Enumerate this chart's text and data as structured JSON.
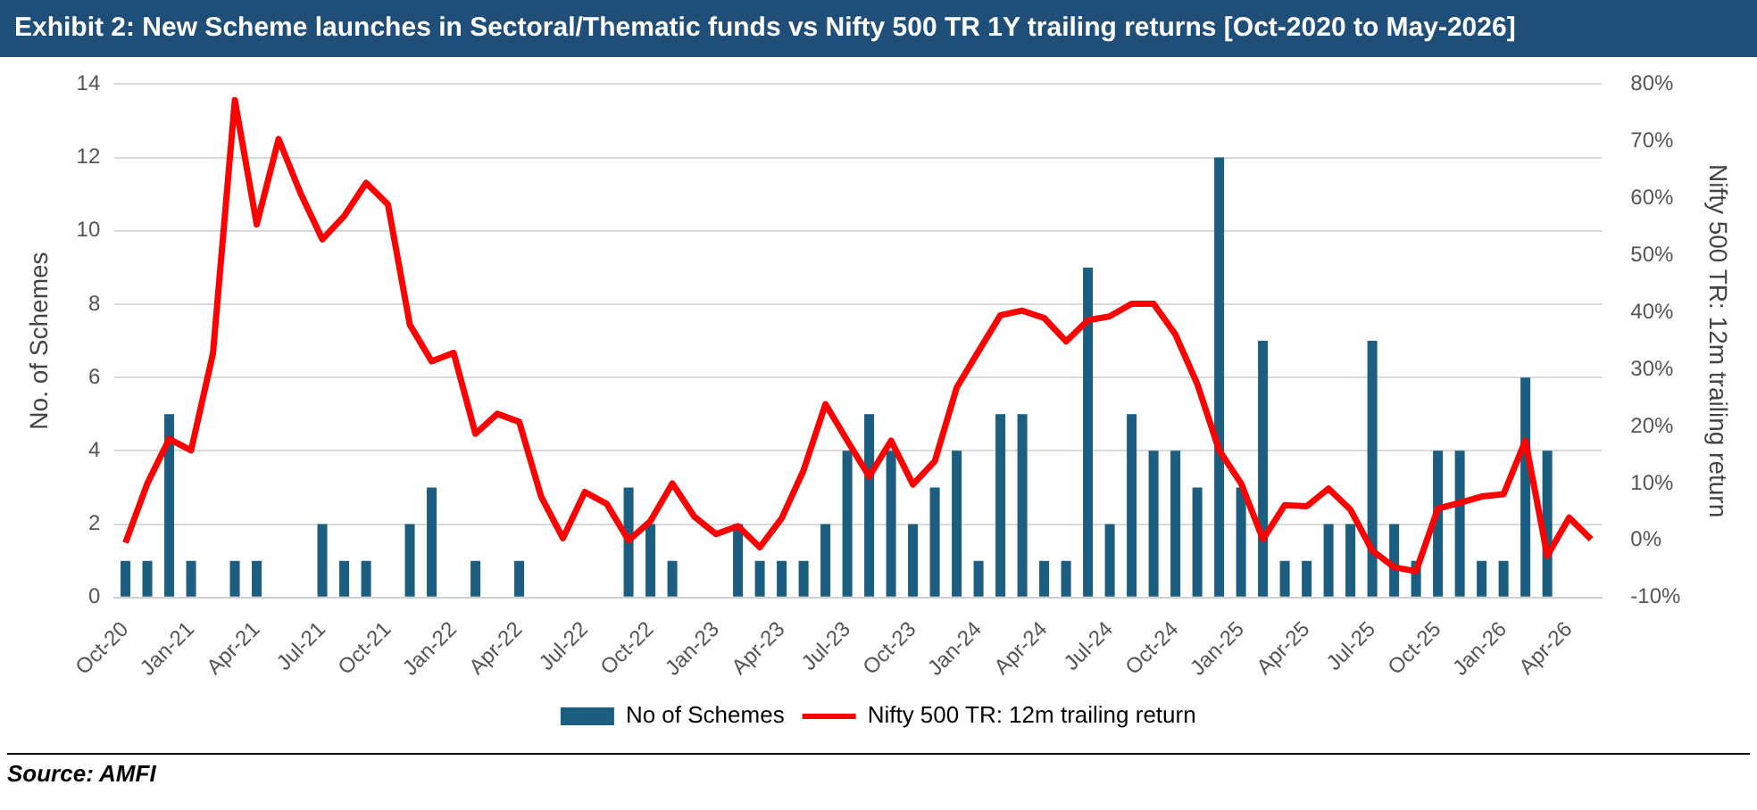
{
  "chart_data": {
    "type": "bar",
    "title": "Exhibit 2: New Scheme launches in Sectoral/Thematic funds vs Nifty 500 TR 1Y trailing returns [Oct-2020 to May-2026]",
    "ylabel": "No. of Schemes",
    "y2label": "Nifty 500 TR: 12m trailing return",
    "annotations": [
      "Source: AMFI"
    ],
    "categories": [
      "Oct-20",
      null,
      null,
      "Jan-21",
      null,
      null,
      "Apr-21",
      null,
      null,
      "Jul-21",
      null,
      null,
      "Oct-21",
      null,
      null,
      "Jan-22",
      null,
      null,
      "Apr-22",
      null,
      null,
      "Jul-22",
      null,
      null,
      "Oct-22",
      null,
      null,
      "Jan-23",
      null,
      null,
      "Apr-23",
      null,
      null,
      "Jul-23",
      null,
      null,
      "Oct-23",
      null,
      null,
      "Jan-24",
      null,
      null,
      "Apr-24",
      null,
      null,
      "Jul-24",
      null,
      null,
      "Oct-24",
      null,
      null,
      "Jan-25",
      null,
      null,
      "Apr-25",
      null,
      null,
      "Jul-25",
      null,
      null,
      "Oct-25",
      null,
      null,
      "Jan-26",
      null,
      null,
      "Apr-26",
      null
    ],
    "series": [
      {
        "name": "No of Schemes",
        "color": "#1b5e80",
        "values": [
          1,
          1,
          5,
          1,
          0,
          1,
          1,
          0,
          0,
          2,
          1,
          1,
          0,
          2,
          3,
          0,
          1,
          0,
          1,
          0,
          0,
          0,
          0,
          3,
          2,
          1,
          0,
          0,
          2,
          1,
          1,
          1,
          2,
          4,
          5,
          4,
          2,
          3,
          4,
          1,
          5,
          5,
          1,
          1,
          9,
          2,
          5,
          4,
          4,
          3,
          12,
          3,
          7,
          1,
          1,
          2,
          2,
          7,
          2,
          1,
          4,
          4,
          1,
          1,
          6,
          4,
          0,
          0
        ]
      },
      {
        "name": "Nifty 500 TR: 12m trailing return",
        "type": "line",
        "axis": "y2",
        "color": "#ff0000",
        "values": [
          -0.4,
          10.0,
          17.8,
          15.8,
          32.8,
          77.2,
          55.4,
          70.4,
          60.9,
          52.8,
          56.9,
          62.7,
          58.9,
          37.8,
          31.4,
          32.9,
          18.7,
          22.2,
          20.8,
          7.7,
          0.4,
          8.5,
          6.4,
          0.0,
          3.4,
          10.0,
          4.2,
          1.1,
          2.5,
          -1.2,
          3.9,
          12.3,
          23.9,
          17.5,
          11.2,
          17.5,
          9.8,
          13.9,
          26.8,
          33.2,
          39.5,
          40.3,
          39.0,
          34.9,
          38.6,
          39.3,
          41.5,
          41.5,
          36.1,
          27.4,
          15.8,
          10.0,
          0.2,
          6.2,
          6.0,
          9.1,
          5.4,
          -1.8,
          -4.7,
          -5.4,
          5.6,
          6.6,
          7.7,
          8.1,
          17.5,
          -2.7,
          4.0,
          0.2
        ]
      }
    ],
    "ylim": [
      0,
      14
    ],
    "yticks": [
      0,
      2,
      4,
      6,
      8,
      10,
      12,
      14
    ],
    "y2lim": [
      -10,
      80
    ],
    "y2ticks": [
      {
        "value": -10,
        "label": "-10%"
      },
      {
        "value": 0,
        "label": "0%"
      },
      {
        "value": 10,
        "label": "10%"
      },
      {
        "value": 20,
        "label": "20%"
      },
      {
        "value": 30,
        "label": "30%"
      },
      {
        "value": 40,
        "label": "40%"
      },
      {
        "value": 50,
        "label": "50%"
      },
      {
        "value": 60,
        "label": "60%"
      },
      {
        "value": 70,
        "label": "70%"
      },
      {
        "value": 80,
        "label": "80%"
      }
    ],
    "grid": "y",
    "legend": "bottom",
    "marker": "none",
    "line_style": "solid"
  }
}
